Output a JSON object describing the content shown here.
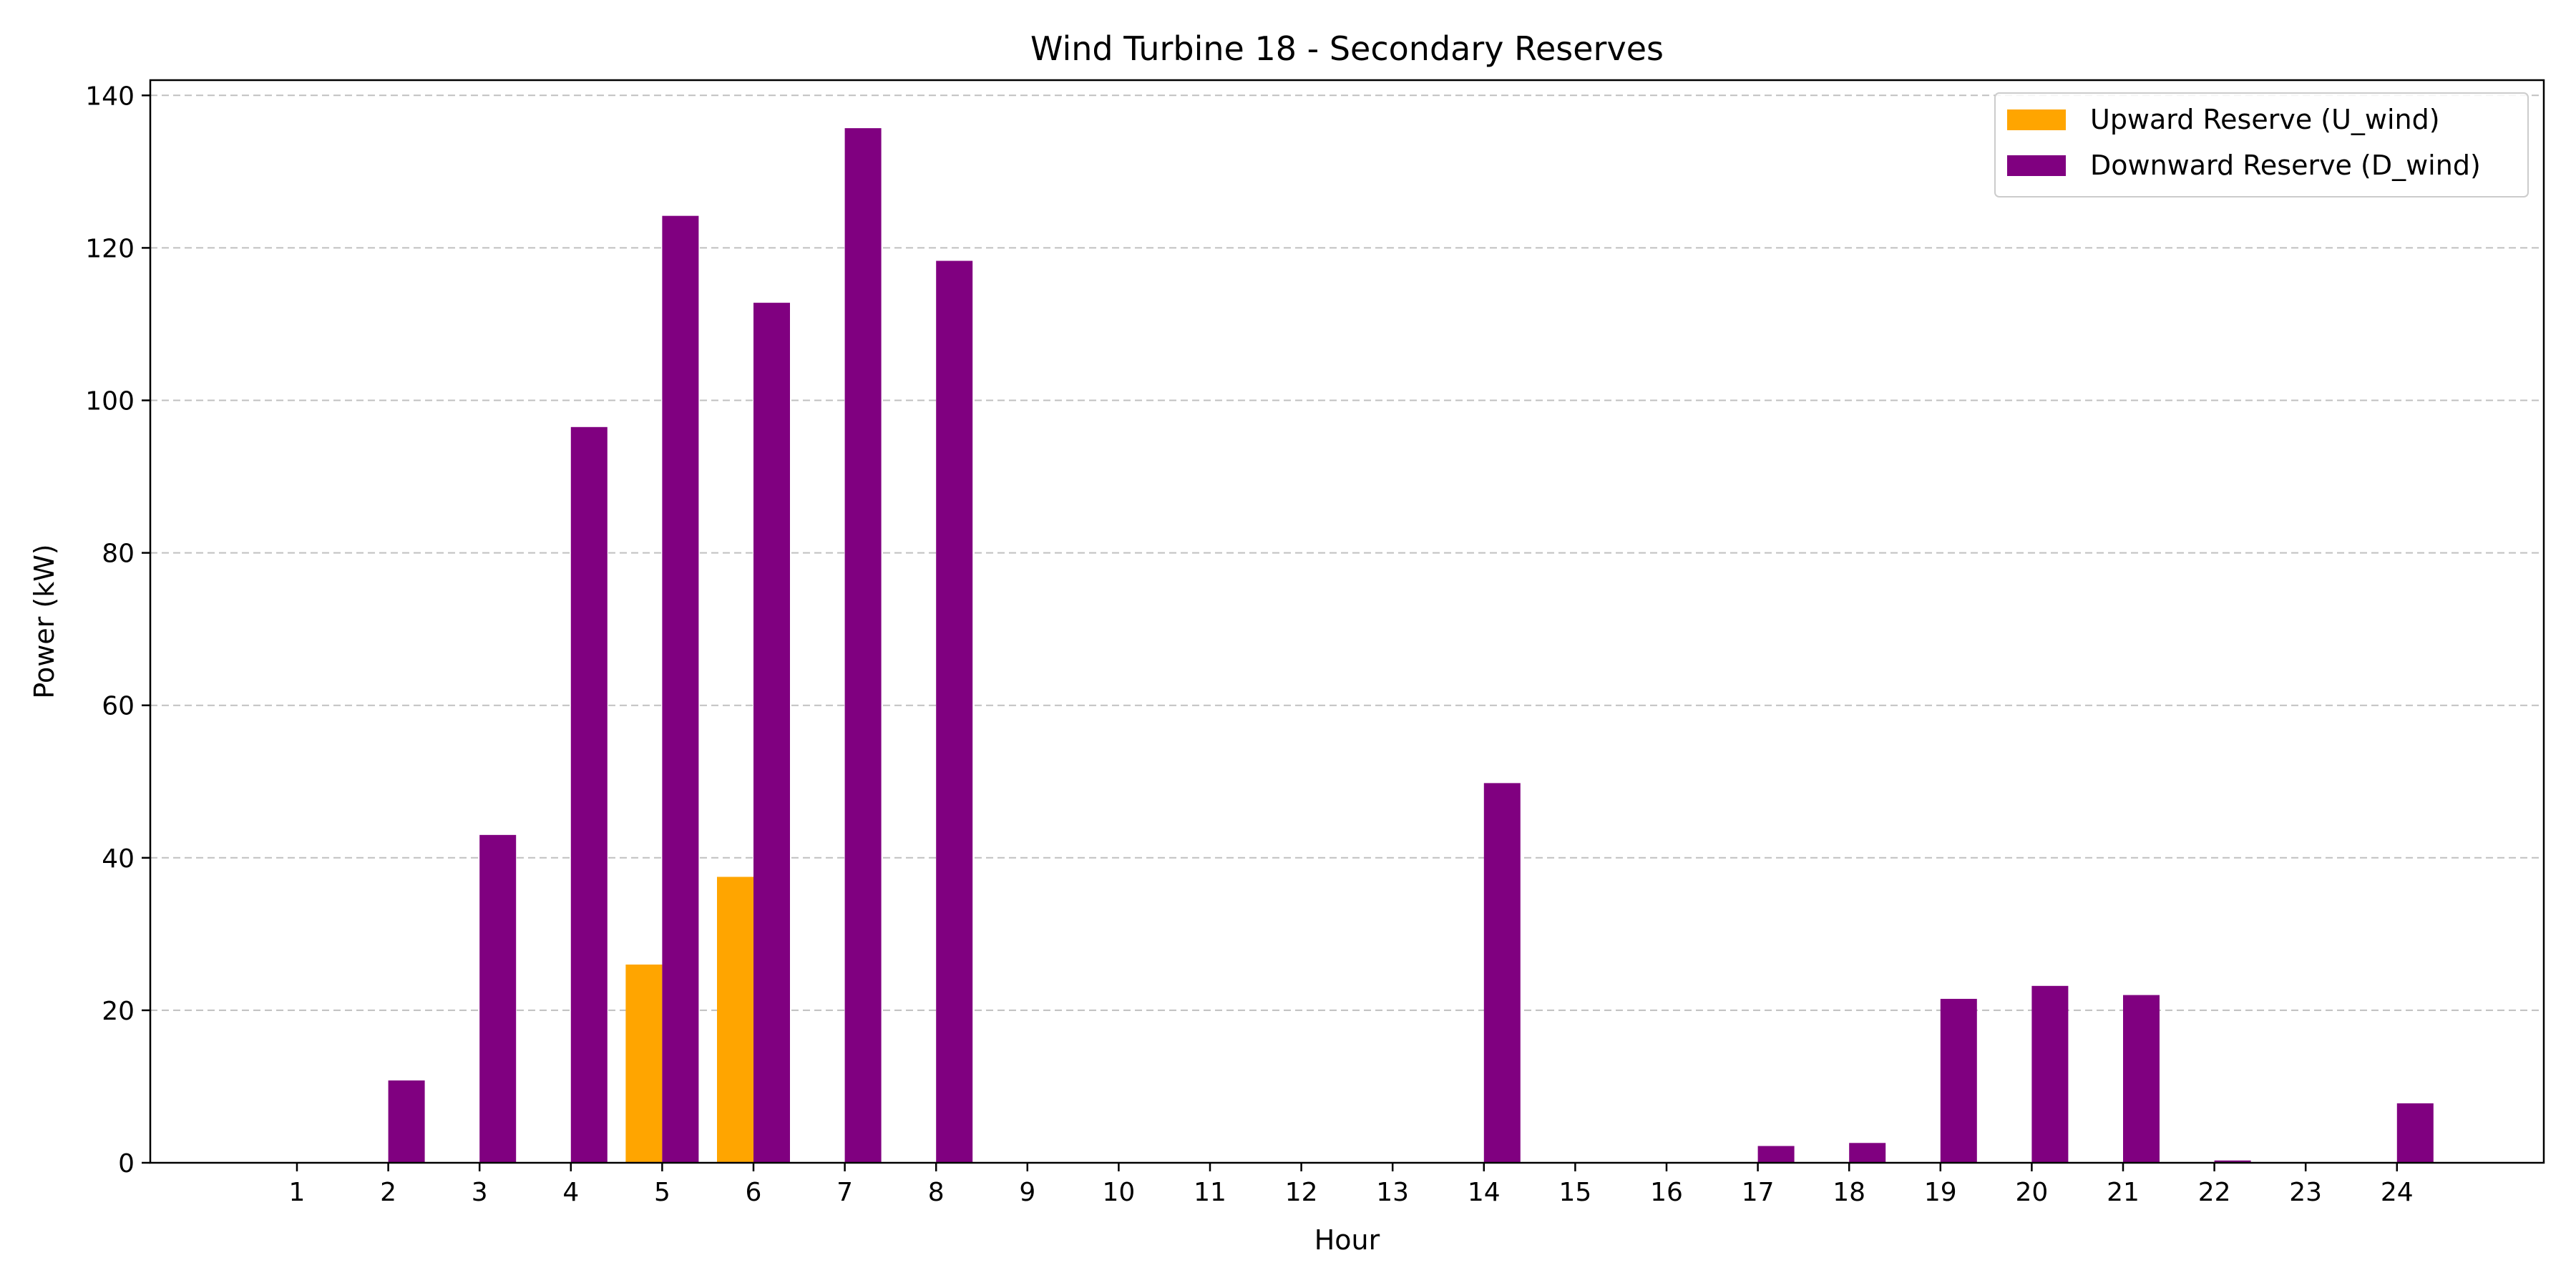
{
  "chart_data": {
    "type": "bar",
    "title": "Wind Turbine 18 - Secondary Reserves",
    "xlabel": "Hour",
    "ylabel": "Power (kW)",
    "categories": [
      "1",
      "2",
      "3",
      "4",
      "5",
      "6",
      "7",
      "8",
      "9",
      "10",
      "11",
      "12",
      "13",
      "14",
      "15",
      "16",
      "17",
      "18",
      "19",
      "20",
      "21",
      "22",
      "23",
      "24"
    ],
    "ylim": [
      0,
      142
    ],
    "yticks": [
      0,
      20,
      40,
      60,
      80,
      100,
      120,
      140
    ],
    "grid": "horizontal-dashed",
    "legend_position": "upper right",
    "series": [
      {
        "name": "Upward Reserve (U_wind)",
        "color": "#FFA500",
        "values": [
          0,
          0,
          0,
          0,
          26.0,
          37.5,
          0,
          0,
          0,
          0,
          0,
          0,
          0,
          0,
          0,
          0,
          0,
          0,
          0,
          0,
          0,
          0,
          0,
          0
        ]
      },
      {
        "name": "Downward Reserve (D_wind)",
        "color": "#800080",
        "values": [
          0,
          10.8,
          43.0,
          96.5,
          124.2,
          112.8,
          135.7,
          118.3,
          0,
          0,
          0,
          0,
          0,
          49.8,
          0,
          0,
          2.2,
          2.6,
          21.5,
          23.2,
          22.0,
          0.3,
          0,
          7.8
        ]
      }
    ]
  }
}
